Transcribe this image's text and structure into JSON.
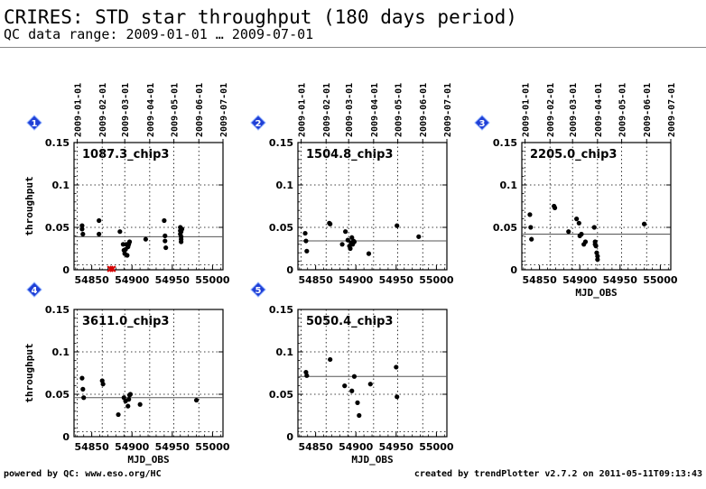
{
  "page": {
    "title": "CRIRES: STD star throughput (180 days period)",
    "subtitle": "QC data range: 2009-01-01 … 2009-07-01",
    "footer_left": "powered by QC: www.eso.org/HC",
    "footer_right": "created by trendPlotter v2.7.2 on 2011-05-11T09:13:43"
  },
  "style": {
    "marker_color": "#000000",
    "reference_line_color": "#555555",
    "badge_color": "#1f3fd6",
    "outlier_color": "#d40000"
  },
  "chart_data": [
    {
      "type": "scatter",
      "badge": "1",
      "label": "1087.3_chip3",
      "ylabel": "throughput",
      "xlabel": "",
      "xlim": [
        54828,
        55013
      ],
      "ylim": [
        0,
        0.15
      ],
      "yticks": [
        "0",
        "0.05",
        "0.1",
        "0.15"
      ],
      "xticks": [
        "54850",
        "54900",
        "54950",
        "55000"
      ],
      "date_ticks": [
        "2009-01-01",
        "2009-02-01",
        "2009-03-01",
        "2009-04-01",
        "2009-05-01",
        "2009-06-01",
        "2009-07-01"
      ],
      "reference": 0.039,
      "x": [
        54838,
        54838,
        54839,
        54859,
        54859,
        54885,
        54889,
        54890,
        54891,
        54892,
        54893,
        54894,
        54895,
        54896,
        54897,
        54917,
        54940,
        54941,
        54941,
        54942,
        54960,
        54960,
        54960,
        54961,
        54961,
        54961,
        54961,
        54962
      ],
      "y": [
        0.052,
        0.048,
        0.042,
        0.058,
        0.042,
        0.045,
        0.03,
        0.023,
        0.019,
        0.024,
        0.03,
        0.017,
        0.027,
        0.03,
        0.033,
        0.036,
        0.058,
        0.04,
        0.034,
        0.026,
        0.05,
        0.046,
        0.042,
        0.039,
        0.036,
        0.033,
        0.045,
        0.048
      ],
      "outliers": [
        0.001,
        0.001
      ],
      "outlier_x": [
        54873,
        54876
      ]
    },
    {
      "type": "scatter",
      "badge": "2",
      "label": "1504.8_chip3",
      "ylabel": "",
      "xlabel": "",
      "xlim": [
        54828,
        55013
      ],
      "ylim": [
        0,
        0.15
      ],
      "yticks": [
        "0",
        "0.05",
        "0.1",
        "0.15"
      ],
      "xticks": [
        "54850",
        "54900",
        "54950",
        "55000"
      ],
      "date_ticks": [
        "2009-01-01",
        "2009-02-01",
        "2009-03-01",
        "2009-04-01",
        "2009-05-01",
        "2009-06-01",
        "2009-07-01"
      ],
      "reference": 0.034,
      "x": [
        54837,
        54838,
        54839,
        54867,
        54868,
        54883,
        54887,
        54890,
        54892,
        54893,
        54894,
        54895,
        54896,
        54897,
        54898,
        54916,
        54951,
        54978
      ],
      "y": [
        0.043,
        0.034,
        0.022,
        0.055,
        0.054,
        0.03,
        0.045,
        0.035,
        0.028,
        0.025,
        0.032,
        0.038,
        0.03,
        0.034,
        0.033,
        0.019,
        0.052,
        0.039
      ],
      "outliers": [],
      "outlier_x": []
    },
    {
      "type": "scatter",
      "badge": "3",
      "label": "2205.0_chip3",
      "ylabel": "",
      "xlabel": "MJD_OBS",
      "xlim": [
        54828,
        55013
      ],
      "ylim": [
        0,
        0.15
      ],
      "yticks": [
        "0",
        "0.05",
        "0.1",
        "0.15"
      ],
      "xticks": [
        "54850",
        "54900",
        "54950",
        "55000"
      ],
      "date_ticks": [
        "2009-01-01",
        "2009-02-01",
        "2009-03-01",
        "2009-04-01",
        "2009-05-01",
        "2009-06-01",
        "2009-07-01"
      ],
      "reference": 0.042,
      "x": [
        54838,
        54839,
        54840,
        54868,
        54869,
        54886,
        54896,
        54899,
        54900,
        54902,
        54905,
        54907,
        54918,
        54919,
        54919,
        54920,
        54921,
        54922,
        54922,
        54980
      ],
      "y": [
        0.065,
        0.05,
        0.036,
        0.075,
        0.073,
        0.045,
        0.06,
        0.055,
        0.04,
        0.042,
        0.03,
        0.033,
        0.05,
        0.033,
        0.03,
        0.028,
        0.02,
        0.016,
        0.012,
        0.054
      ],
      "outliers": [],
      "outlier_x": []
    },
    {
      "type": "scatter",
      "badge": "4",
      "label": "3611.0_chip3",
      "ylabel": "throughput",
      "xlabel": "MJD_OBS",
      "xlim": [
        54828,
        55013
      ],
      "ylim": [
        0,
        0.15
      ],
      "yticks": [
        "0",
        "0.05",
        "0.1",
        "0.15"
      ],
      "xticks": [
        "54850",
        "54900",
        "54950",
        "55000"
      ],
      "date_ticks": [],
      "reference": 0.046,
      "x": [
        54838,
        54839,
        54840,
        54863,
        54864,
        54883,
        54890,
        54892,
        54895,
        54896,
        54897,
        54898,
        54910,
        54980
      ],
      "y": [
        0.069,
        0.056,
        0.046,
        0.066,
        0.062,
        0.026,
        0.046,
        0.042,
        0.036,
        0.044,
        0.049,
        0.05,
        0.038,
        0.043
      ],
      "outliers": [],
      "outlier_x": []
    },
    {
      "type": "scatter",
      "badge": "5",
      "label": "5050.4_chip3",
      "ylabel": "",
      "xlabel": "MJD_OBS",
      "xlim": [
        54828,
        55013
      ],
      "ylim": [
        0,
        0.15
      ],
      "yticks": [
        "0",
        "0.05",
        "0.1",
        "0.15"
      ],
      "xticks": [
        "54850",
        "54900",
        "54950",
        "55000"
      ],
      "date_ticks": [],
      "reference": 0.071,
      "x": [
        54838,
        54839,
        54868,
        54886,
        54895,
        54898,
        54902,
        54904,
        54918,
        54950,
        54951
      ],
      "y": [
        0.076,
        0.072,
        0.091,
        0.06,
        0.054,
        0.071,
        0.04,
        0.025,
        0.062,
        0.082,
        0.047
      ],
      "outliers": [],
      "outlier_x": []
    }
  ]
}
